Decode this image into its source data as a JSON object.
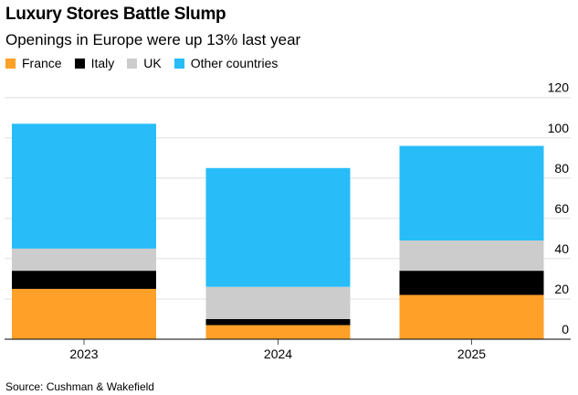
{
  "chart_data": {
    "type": "bar",
    "stacked": true,
    "title": "Luxury Stores Battle Slump",
    "subtitle": "Openings in Europe were up 13% last year",
    "categories": [
      "2023",
      "2024",
      "2025"
    ],
    "series": [
      {
        "name": "France",
        "color": "#ffa028",
        "values": [
          25,
          7,
          22
        ]
      },
      {
        "name": "Italy",
        "color": "#000000",
        "values": [
          9,
          3,
          12
        ]
      },
      {
        "name": "UK",
        "color": "#cccccc",
        "values": [
          11,
          16,
          15
        ]
      },
      {
        "name": "Other countries",
        "color": "#28bcf8",
        "values": [
          62,
          59,
          47
        ]
      }
    ],
    "ylim": [
      0,
      120
    ],
    "yticks": [
      0,
      20,
      40,
      60,
      80,
      100,
      120
    ],
    "y_axis_position": "right",
    "grid": true,
    "legend_position": "top-left",
    "xlabel": "",
    "ylabel": "",
    "source": "Source: Cushman & Wakefield"
  }
}
